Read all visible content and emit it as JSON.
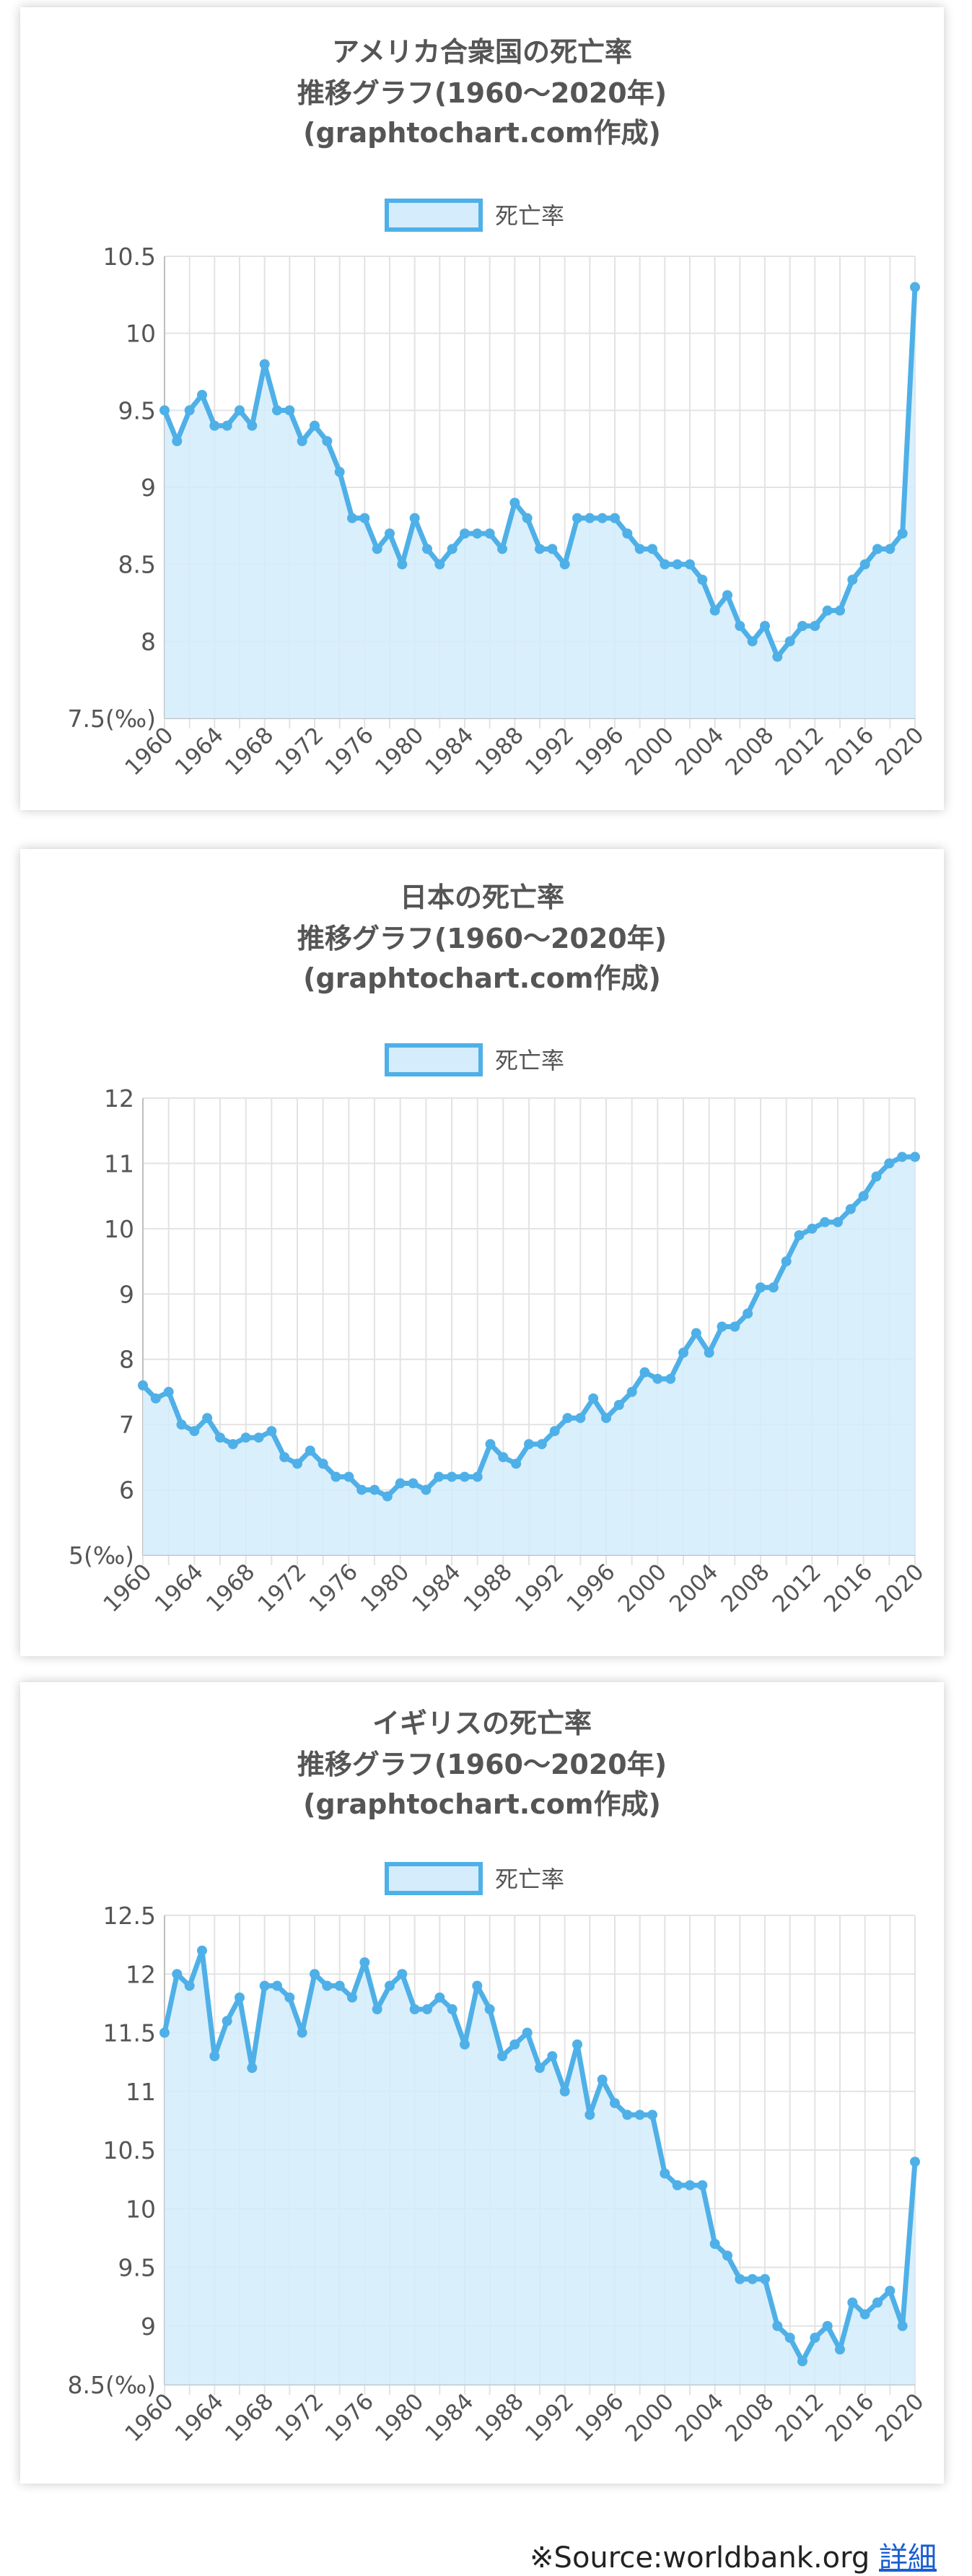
{
  "charts": [
    {
      "type": "line",
      "title": [
        "アメリカ合衆国の死亡率",
        "推移グラフ(1960〜2020年)",
        "(graphtochart.com作成)"
      ],
      "legend": "死亡率",
      "y_ticks": [
        "10.5",
        "10",
        "9.5",
        "9",
        "8.5",
        "8",
        "7.5(‰)"
      ],
      "ylim": [
        7.5,
        10.5
      ],
      "x_ticks": [
        "1960",
        "1964",
        "1968",
        "1972",
        "1976",
        "1980",
        "1984",
        "1988",
        "1992",
        "1996",
        "2000",
        "2004",
        "2008",
        "2012",
        "2016",
        "2020"
      ],
      "series": [
        {
          "values": [
            9.5,
            9.3,
            9.5,
            9.6,
            9.4,
            9.4,
            9.5,
            9.4,
            9.8,
            9.5,
            9.5,
            9.3,
            9.4,
            9.3,
            9.1,
            8.8,
            8.8,
            8.6,
            8.7,
            8.5,
            8.8,
            8.6,
            8.5,
            8.6,
            8.7,
            8.7,
            8.7,
            8.6,
            8.9,
            8.8,
            8.6,
            8.6,
            8.5,
            8.8,
            8.8,
            8.8,
            8.8,
            8.7,
            8.6,
            8.6,
            8.5,
            8.5,
            8.5,
            8.4,
            8.2,
            8.3,
            8.1,
            8.0,
            8.1,
            7.9,
            8.0,
            8.1,
            8.1,
            8.2,
            8.2,
            8.4,
            8.5,
            8.6,
            8.6,
            8.7,
            10.3
          ]
        }
      ]
    },
    {
      "type": "line",
      "title": [
        "日本の死亡率",
        "推移グラフ(1960〜2020年)",
        "(graphtochart.com作成)"
      ],
      "legend": "死亡率",
      "y_ticks": [
        "12",
        "11",
        "10",
        "9",
        "8",
        "7",
        "6",
        "5(‰)"
      ],
      "ylim": [
        5,
        12
      ],
      "x_ticks": [
        "1960",
        "1964",
        "1968",
        "1972",
        "1976",
        "1980",
        "1984",
        "1988",
        "1992",
        "1996",
        "2000",
        "2004",
        "2008",
        "2012",
        "2016",
        "2020"
      ],
      "series": [
        {
          "values": [
            7.6,
            7.4,
            7.5,
            7.0,
            6.9,
            7.1,
            6.8,
            6.7,
            6.8,
            6.8,
            6.9,
            6.5,
            6.4,
            6.6,
            6.4,
            6.2,
            6.2,
            6.0,
            6.0,
            5.9,
            6.1,
            6.1,
            6.0,
            6.2,
            6.2,
            6.2,
            6.2,
            6.7,
            6.5,
            6.4,
            6.7,
            6.7,
            6.9,
            7.1,
            7.1,
            7.4,
            7.1,
            7.3,
            7.5,
            7.8,
            7.7,
            7.7,
            8.1,
            8.4,
            8.1,
            8.5,
            8.5,
            8.7,
            9.1,
            9.1,
            9.5,
            9.9,
            10.0,
            10.1,
            10.1,
            10.3,
            10.5,
            10.8,
            11.0,
            11.1,
            11.1
          ]
        }
      ]
    },
    {
      "type": "line",
      "title": [
        "イギリスの死亡率",
        "推移グラフ(1960〜2020年)",
        "(graphtochart.com作成)"
      ],
      "legend": "死亡率",
      "y_ticks": [
        "12.5",
        "12",
        "11.5",
        "11",
        "10.5",
        "10",
        "9.5",
        "9",
        "8.5(‰)"
      ],
      "ylim": [
        8.5,
        12.5
      ],
      "x_ticks": [
        "1960",
        "1964",
        "1968",
        "1972",
        "1976",
        "1980",
        "1984",
        "1988",
        "1992",
        "1996",
        "2000",
        "2004",
        "2008",
        "2012",
        "2016",
        "2020"
      ],
      "series": [
        {
          "values": [
            11.5,
            12.0,
            11.9,
            12.2,
            11.3,
            11.6,
            11.8,
            11.2,
            11.9,
            11.9,
            11.8,
            11.5,
            12.0,
            11.9,
            11.9,
            11.8,
            12.1,
            11.7,
            11.9,
            12.0,
            11.7,
            11.7,
            11.8,
            11.7,
            11.4,
            11.9,
            11.7,
            11.3,
            11.4,
            11.5,
            11.2,
            11.3,
            11.0,
            11.4,
            10.8,
            11.1,
            10.9,
            10.8,
            10.8,
            10.8,
            10.3,
            10.2,
            10.2,
            10.2,
            9.7,
            9.6,
            9.4,
            9.4,
            9.4,
            9.0,
            8.9,
            8.7,
            8.9,
            9.0,
            8.8,
            9.2,
            9.1,
            9.2,
            9.3,
            9.0,
            10.4
          ]
        }
      ]
    }
  ],
  "footer": {
    "source": "※Source:worldbank.org",
    "link": "詳細"
  },
  "colors": {
    "line": "#4fb0e8",
    "fill": "#d4ecfb",
    "grid": "#e3e3e3",
    "axis": "#bfbfbf",
    "text": "#555555"
  }
}
